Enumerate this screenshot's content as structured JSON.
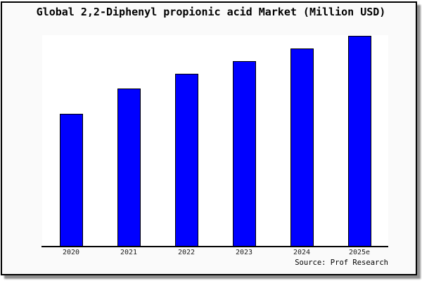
{
  "page": {
    "background": "#ffffff",
    "figure_background": "#fafafa",
    "plot_background": "#ffffff",
    "frame_color": "#000000",
    "shadow_color": "#8f8f8f"
  },
  "chart_data": {
    "type": "bar",
    "title": "Global 2,2-Diphenyl propionic acid Market (Million USD)",
    "categories": [
      "2020",
      "2021",
      "2022",
      "2023",
      "2024",
      "2025e"
    ],
    "values": [
      63,
      75,
      82,
      88,
      94,
      100
    ],
    "value_note": "No y-axis ticks or data labels are shown; values are estimated relative heights with 2025e = 100",
    "xlabel": "",
    "ylabel": "",
    "ylim": [
      0,
      100.5
    ],
    "grid": false,
    "legend": "none",
    "bar_color": "#0000ff",
    "bar_edge_color": "#000000",
    "source_label": "Source: Prof Research"
  }
}
